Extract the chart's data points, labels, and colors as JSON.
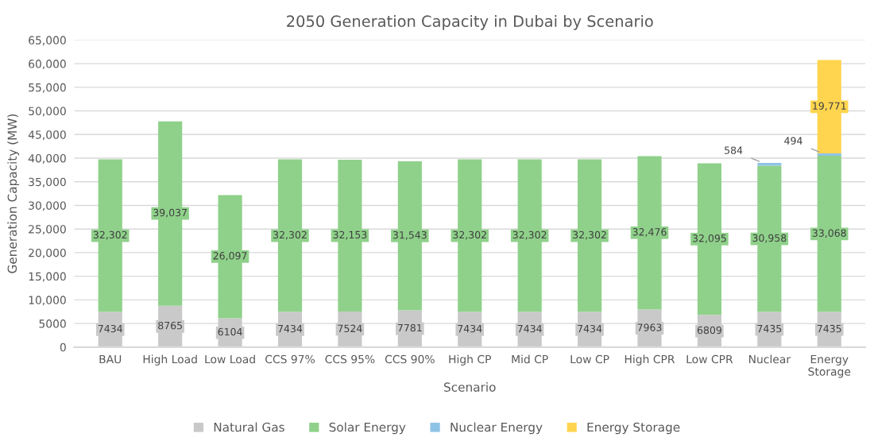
{
  "chart_data": {
    "type": "bar",
    "stacked": true,
    "title": "2050 Generation Capacity in Dubai by Scenario",
    "xlabel": "Scenario",
    "ylabel": "Generation Capacity (MW)",
    "categories": [
      "BAU",
      "High Load",
      "Low Load",
      "CCS 97%",
      "CCS 95%",
      "CCS 90%",
      "High CP",
      "Mid CP",
      "Low CP",
      "High CPR",
      "Low CPR",
      "Nuclear",
      "Energy Storage"
    ],
    "series": [
      {
        "name": "Natural Gas",
        "color": "#c9c9c9",
        "values": [
          7434,
          8765,
          6104,
          7434,
          7524,
          7781,
          7434,
          7434,
          7434,
          7963,
          6809,
          7435,
          7435
        ],
        "value_labels": [
          "7434",
          "8765",
          "6104",
          "7434",
          "7524",
          "7781",
          "7434",
          "7434",
          "7434",
          "7963",
          "6809",
          "7435",
          "7435"
        ]
      },
      {
        "name": "Solar Energy",
        "color": "#8fd18a",
        "values": [
          32302,
          39037,
          26097,
          32302,
          32153,
          31543,
          32302,
          32302,
          32302,
          32476,
          32095,
          30958,
          33068
        ],
        "value_labels": [
          "32,302",
          "39,037",
          "26,097",
          "32,302",
          "32,153",
          "31,543",
          "32,302",
          "32,302",
          "32,302",
          "32,476",
          "32,095",
          "30,958",
          "33,068"
        ]
      },
      {
        "name": "Nuclear Energy",
        "color": "#8fc3e6",
        "values": [
          0,
          0,
          0,
          0,
          0,
          0,
          0,
          0,
          0,
          0,
          0,
          584,
          494
        ],
        "value_labels": [
          null,
          null,
          null,
          null,
          null,
          null,
          null,
          null,
          null,
          null,
          null,
          "584",
          "494"
        ]
      },
      {
        "name": "Energy Storage",
        "color": "#ffd54f",
        "values": [
          0,
          0,
          0,
          0,
          0,
          0,
          0,
          0,
          0,
          0,
          0,
          0,
          19771
        ],
        "value_labels": [
          null,
          null,
          null,
          null,
          null,
          null,
          null,
          null,
          null,
          null,
          null,
          null,
          "19,771"
        ]
      }
    ],
    "ylim": [
      0,
      65000
    ],
    "yticks": [
      {
        "value": 0,
        "label": "0"
      },
      {
        "value": 5000,
        "label": "5000"
      },
      {
        "value": 10000,
        "label": "10,000"
      },
      {
        "value": 15000,
        "label": "15,000"
      },
      {
        "value": 20000,
        "label": "20,000"
      },
      {
        "value": 25000,
        "label": "25,000"
      },
      {
        "value": 30000,
        "label": "30,000"
      },
      {
        "value": 35000,
        "label": "35,000"
      },
      {
        "value": 40000,
        "label": "40,000"
      },
      {
        "value": 45000,
        "label": "45,000"
      },
      {
        "value": 50000,
        "label": "50,000"
      },
      {
        "value": 55000,
        "label": "55,000"
      },
      {
        "value": 60000,
        "label": "60,000"
      },
      {
        "value": 65000,
        "label": "65,000"
      }
    ],
    "grid": "y",
    "legend": "bottom"
  }
}
